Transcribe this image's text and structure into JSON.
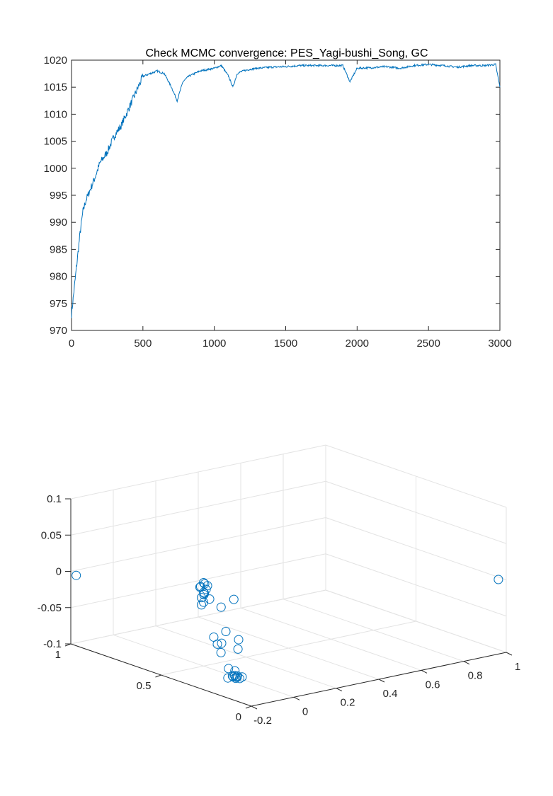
{
  "chart_data": [
    {
      "type": "line",
      "title": "Check MCMC convergence: PES_Yagi-bushi_Song, GC",
      "xlabel": "",
      "ylabel": "",
      "xlim": [
        0,
        3000
      ],
      "ylim": [
        970,
        1020
      ],
      "x_ticks": [
        "0",
        "500",
        "1000",
        "1500",
        "2000",
        "2500",
        "3000"
      ],
      "y_ticks": [
        "970",
        "975",
        "980",
        "985",
        "990",
        "995",
        "1000",
        "1005",
        "1010",
        "1015",
        "1020"
      ],
      "grid": false,
      "color": "#0072BD",
      "series": [
        {
          "x": [
            0,
            20,
            40,
            60,
            80,
            100,
            130,
            160,
            200,
            250,
            300,
            350,
            400,
            450,
            500,
            550,
            600,
            650,
            700,
            740,
            780,
            820,
            900,
            1000,
            1050,
            1100,
            1130,
            1160,
            1200,
            1250,
            1300,
            1400,
            1500,
            1600,
            1700,
            1800,
            1900,
            1950,
            2000,
            2100,
            2200,
            2300,
            2400,
            2500,
            2600,
            2700,
            2800,
            2900,
            2970,
            3000
          ],
          "y": [
            973,
            978,
            983,
            988,
            992,
            994,
            996,
            998,
            1001,
            1003,
            1006,
            1008,
            1011,
            1014,
            1017,
            1017.5,
            1018,
            1017.5,
            1015,
            1012.5,
            1016,
            1017,
            1018,
            1018.5,
            1019,
            1017,
            1015,
            1017.5,
            1018,
            1018.3,
            1018.5,
            1018.7,
            1018.8,
            1019,
            1019,
            1019,
            1019,
            1016,
            1018.5,
            1018.6,
            1018.8,
            1018.5,
            1019,
            1019.2,
            1019,
            1018.7,
            1019,
            1019,
            1019.2,
            1015
          ]
        }
      ]
    },
    {
      "type": "scatter",
      "title": "",
      "xlabel": "",
      "ylabel": "",
      "zlabel": "",
      "xlim": [
        -0.2,
        1
      ],
      "ylim": [
        0,
        1
      ],
      "zlim": [
        -0.1,
        0.1
      ],
      "x_ticks": [
        "-0.2",
        "0",
        "0.2",
        "0.4",
        "0.6",
        "0.8",
        "1"
      ],
      "y_ticks": [
        "0",
        "0.5",
        "1"
      ],
      "z_ticks": [
        "-0.1",
        "-0.05",
        "0",
        "0.05",
        "0.1"
      ],
      "grid": true,
      "marker": "circle",
      "color": "#0072BD",
      "points": [
        {
          "x": -0.2,
          "y": 0.97,
          "z": -0.003
        },
        {
          "x": 0.98,
          "y": 0.02,
          "z": 0.0
        },
        {
          "x": 0.0,
          "y": 0.5,
          "z": 0.015
        },
        {
          "x": 0.005,
          "y": 0.5,
          "z": 0.013
        },
        {
          "x": 0.01,
          "y": 0.49,
          "z": 0.011
        },
        {
          "x": -0.005,
          "y": 0.51,
          "z": 0.009
        },
        {
          "x": 0.0,
          "y": 0.52,
          "z": 0.007
        },
        {
          "x": 0.012,
          "y": 0.5,
          "z": 0.005
        },
        {
          "x": -0.008,
          "y": 0.49,
          "z": 0.003
        },
        {
          "x": 0.004,
          "y": 0.5,
          "z": 0.0
        },
        {
          "x": 0.01,
          "y": 0.51,
          "z": -0.003
        },
        {
          "x": -0.01,
          "y": 0.5,
          "z": -0.005
        },
        {
          "x": 0.02,
          "y": 0.49,
          "z": -0.008
        },
        {
          "x": 0.0,
          "y": 0.5,
          "z": -0.012
        },
        {
          "x": 0.04,
          "y": 0.45,
          "z": -0.017
        },
        {
          "x": 0.1,
          "y": 0.45,
          "z": -0.01
        },
        {
          "x": -0.01,
          "y": 0.5,
          "z": -0.015
        },
        {
          "x": 0.02,
          "y": 0.4,
          "z": -0.045
        },
        {
          "x": -0.02,
          "y": 0.42,
          "z": -0.052
        },
        {
          "x": -0.02,
          "y": 0.4,
          "z": -0.06
        },
        {
          "x": 0.0,
          "y": 0.4,
          "z": -0.06
        },
        {
          "x": 0.08,
          "y": 0.4,
          "z": -0.06
        },
        {
          "x": -0.02,
          "y": 0.38,
          "z": -0.07
        },
        {
          "x": 0.06,
          "y": 0.38,
          "z": -0.07
        },
        {
          "x": -0.01,
          "y": 0.35,
          "z": -0.09
        },
        {
          "x": 0.02,
          "y": 0.35,
          "z": -0.095
        },
        {
          "x": 0.0,
          "y": 0.34,
          "z": -0.1
        },
        {
          "x": 0.01,
          "y": 0.34,
          "z": -0.1
        },
        {
          "x": -0.005,
          "y": 0.33,
          "z": -0.1
        },
        {
          "x": 0.015,
          "y": 0.33,
          "z": -0.1
        },
        {
          "x": 0.0,
          "y": 0.32,
          "z": -0.1
        },
        {
          "x": 0.005,
          "y": 0.32,
          "z": -0.1
        },
        {
          "x": -0.01,
          "y": 0.31,
          "z": -0.1
        },
        {
          "x": 0.02,
          "y": 0.31,
          "z": -0.1
        },
        {
          "x": -0.03,
          "y": 0.33,
          "z": -0.1
        },
        {
          "x": 0.0,
          "y": 0.3,
          "z": -0.1
        }
      ]
    }
  ]
}
